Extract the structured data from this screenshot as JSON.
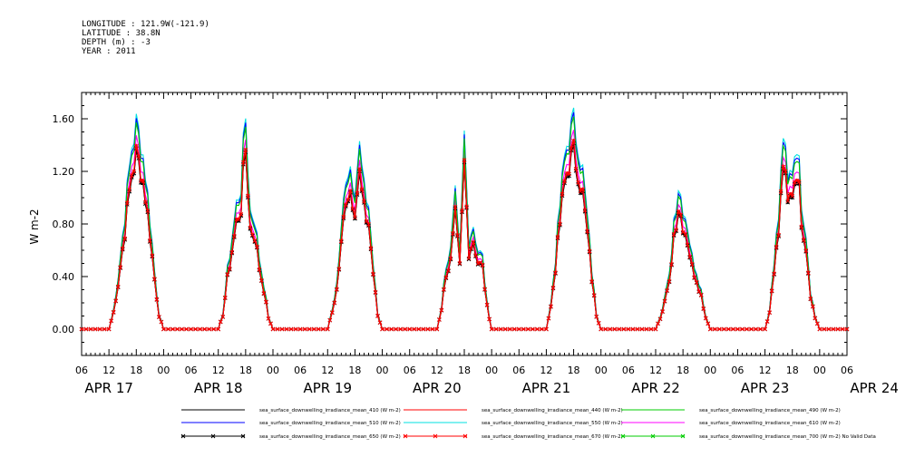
{
  "header": {
    "longitude": "LONGITUDE : 121.9W(-121.9)",
    "latitude": "LATITUDE : 38.8N",
    "depth": "DEPTH (m) : -3",
    "year": "YEAR : 2011"
  },
  "chart_data": {
    "type": "line",
    "title": "",
    "xlabel": "",
    "ylabel": "W m-2",
    "ylim": [
      -0.2,
      1.8
    ],
    "yticks": [
      "0.00",
      "0.40",
      "0.80",
      "1.20",
      "1.60"
    ],
    "ytick_values": [
      0.0,
      0.4,
      0.8,
      1.2,
      1.6
    ],
    "x_hour_ticks": [
      "06",
      "12",
      "18",
      "00",
      "06",
      "12",
      "18",
      "00",
      "06",
      "12",
      "18",
      "00",
      "06",
      "12",
      "18",
      "00",
      "06",
      "12",
      "18",
      "00",
      "06",
      "12",
      "18",
      "00",
      "06",
      "12",
      "18",
      "00",
      "06"
    ],
    "x_date_labels": [
      "APR 17",
      "APR 18",
      "APR 19",
      "APR 20",
      "APR 21",
      "APR 22",
      "APR 23",
      "APR 24"
    ],
    "x_range_hours": [
      6,
      174
    ],
    "x_units": "hours since APR 17 00:00",
    "grid": false,
    "legend_position": "bottom",
    "days": [
      {
        "date": "APR 17",
        "noon_hour": 18,
        "ymax": 1.55,
        "profile": [
          [
            -6,
            0.0
          ],
          [
            -5,
            0.15
          ],
          [
            -4,
            0.4
          ],
          [
            -3,
            0.72
          ],
          [
            -2,
            1.05
          ],
          [
            -1,
            1.4
          ],
          [
            0,
            1.55
          ],
          [
            1,
            1.45
          ],
          [
            2,
            1.2
          ],
          [
            3,
            0.85
          ],
          [
            4,
            0.45
          ],
          [
            5,
            0.12
          ],
          [
            6,
            0.0
          ]
        ]
      },
      {
        "date": "APR 18",
        "noon_hour": 42,
        "ymax": 1.62,
        "profile": [
          [
            -6,
            0.0
          ],
          [
            -5,
            0.12
          ],
          [
            -4,
            0.45
          ],
          [
            -3,
            0.7
          ],
          [
            -2,
            0.95
          ],
          [
            -1,
            1.1
          ],
          [
            0,
            1.62
          ],
          [
            1,
            0.9
          ],
          [
            2,
            0.85
          ],
          [
            3,
            0.55
          ],
          [
            4,
            0.35
          ],
          [
            5,
            0.1
          ],
          [
            6,
            0.0
          ]
        ]
      },
      {
        "date": "APR 19",
        "noon_hour": 66,
        "ymax": 1.38,
        "profile": [
          [
            -6,
            0.0
          ],
          [
            -5,
            0.15
          ],
          [
            -4,
            0.35
          ],
          [
            -3,
            0.75
          ],
          [
            -2,
            1.2
          ],
          [
            -1,
            1.25
          ],
          [
            0,
            1.1
          ],
          [
            1,
            1.38
          ],
          [
            2,
            1.05
          ],
          [
            3,
            0.95
          ],
          [
            4,
            0.5
          ],
          [
            5,
            0.12
          ],
          [
            6,
            0.0
          ]
        ]
      },
      {
        "date": "APR 20",
        "noon_hour": 90,
        "ymax": 1.47,
        "profile": [
          [
            -6,
            0.0
          ],
          [
            -5,
            0.18
          ],
          [
            -4,
            0.5
          ],
          [
            -3,
            0.6
          ],
          [
            -2,
            1.0
          ],
          [
            -1,
            0.55
          ],
          [
            0,
            1.47
          ],
          [
            1,
            0.7
          ],
          [
            2,
            0.8
          ],
          [
            3,
            0.6
          ],
          [
            4,
            0.55
          ],
          [
            5,
            0.2
          ],
          [
            6,
            0.0
          ]
        ]
      },
      {
        "date": "APR 21",
        "noon_hour": 114,
        "ymax": 1.56,
        "profile": [
          [
            -6,
            0.0
          ],
          [
            -5,
            0.2
          ],
          [
            -4,
            0.55
          ],
          [
            -3,
            0.95
          ],
          [
            -2,
            1.3
          ],
          [
            -1,
            1.5
          ],
          [
            0,
            1.56
          ],
          [
            1,
            1.45
          ],
          [
            2,
            1.2
          ],
          [
            3,
            0.85
          ],
          [
            4,
            0.45
          ],
          [
            5,
            0.12
          ],
          [
            6,
            0.0
          ]
        ]
      },
      {
        "date": "APR 22",
        "noon_hour": 138,
        "ymax": 1.1,
        "profile": [
          [
            -6,
            0.0
          ],
          [
            -5,
            0.1
          ],
          [
            -4,
            0.25
          ],
          [
            -3,
            0.4
          ],
          [
            -2,
            0.85
          ],
          [
            -1,
            1.1
          ],
          [
            0,
            0.95
          ],
          [
            1,
            0.8
          ],
          [
            2,
            0.55
          ],
          [
            3,
            0.45
          ],
          [
            4,
            0.3
          ],
          [
            5,
            0.1
          ],
          [
            6,
            0.0
          ]
        ]
      },
      {
        "date": "APR 23",
        "noon_hour": 162,
        "ymax": 1.5,
        "profile": [
          [
            -6,
            0.0
          ],
          [
            -5,
            0.15
          ],
          [
            -4,
            0.55
          ],
          [
            -3,
            0.85
          ],
          [
            -2,
            1.5
          ],
          [
            -1,
            1.1
          ],
          [
            0,
            1.25
          ],
          [
            1,
            1.45
          ],
          [
            2,
            1.0
          ],
          [
            3,
            0.75
          ],
          [
            4,
            0.3
          ],
          [
            5,
            0.1
          ],
          [
            6,
            0.0
          ]
        ]
      }
    ],
    "series": [
      {
        "name": "sea_surface_downwelling_irradiance_mean_410 (W m-2)",
        "color": "#000000",
        "scale": 0.83,
        "marker": "none"
      },
      {
        "name": "sea_surface_downwelling_irradiance_mean_440 (W m-2)",
        "color": "#ff0000",
        "scale": 0.86,
        "marker": "none"
      },
      {
        "name": "sea_surface_downwelling_irradiance_mean_490 (W m-2)",
        "color": "#00cc00",
        "scale": 0.96,
        "marker": "none"
      },
      {
        "name": "sea_surface_downwelling_irradiance_mean_510 (W m-2)",
        "color": "#0000ff",
        "scale": 0.98,
        "marker": "none"
      },
      {
        "name": "sea_surface_downwelling_irradiance_mean_550 (W m-2)",
        "color": "#00e0e0",
        "scale": 1.0,
        "marker": "none"
      },
      {
        "name": "sea_surface_downwelling_irradiance_mean_610 (W m-2)",
        "color": "#ff00ff",
        "scale": 0.9,
        "marker": "none"
      },
      {
        "name": "sea_surface_downwelling_irradiance_mean_650 (W m-2)",
        "color": "#000000",
        "scale": 0.84,
        "marker": "x"
      },
      {
        "name": "sea_surface_downwelling_irradiance_mean_670 (W m-2)",
        "color": "#ff0000",
        "scale": 0.85,
        "marker": "x"
      },
      {
        "name": "sea_surface_downwelling_irradiance_mean_700 (W m-2) No Valid Data",
        "color": "#00cc00",
        "scale": 0,
        "marker": "x"
      }
    ]
  }
}
